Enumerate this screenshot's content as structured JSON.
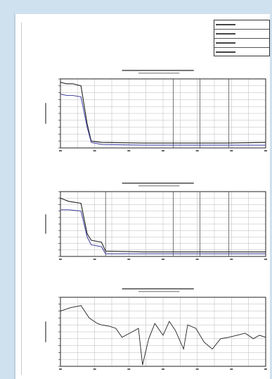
{
  "window": {
    "title": ""
  },
  "title_block": {
    "rows": [
      "",
      "",
      "",
      ""
    ]
  },
  "colors": {
    "background": "#cfe0ee",
    "page": "#ffffff",
    "grid": "#b8b8b8",
    "line_black": "#222222",
    "line_blue": "#4a4aa8"
  },
  "chart_data": [
    {
      "type": "line",
      "title": "",
      "xlabel": "",
      "ylabel": "",
      "grid": true,
      "series": [
        {
          "x": [
            0,
            0.03,
            0.06,
            0.1,
            0.13,
            0.15,
            0.2,
            0.4,
            0.6,
            0.8,
            1.0
          ],
          "values": [
            0.95,
            0.93,
            0.93,
            0.9,
            0.35,
            0.1,
            0.08,
            0.07,
            0.07,
            0.07,
            0.08
          ]
        },
        {
          "x": [
            0,
            0.03,
            0.06,
            0.1,
            0.13,
            0.15,
            0.2,
            0.4,
            0.6,
            0.8,
            1.0
          ],
          "values": [
            0.78,
            0.76,
            0.76,
            0.74,
            0.3,
            0.08,
            0.05,
            0.04,
            0.04,
            0.04,
            0.04
          ]
        }
      ],
      "vlines": [
        0.55,
        0.68,
        0.82,
        1.0
      ]
    },
    {
      "type": "line",
      "title": "",
      "xlabel": "",
      "ylabel": "",
      "grid": true,
      "series": [
        {
          "x": [
            0,
            0.04,
            0.1,
            0.13,
            0.15,
            0.2,
            0.22,
            0.4,
            0.6,
            0.8,
            1.0
          ],
          "values": [
            0.9,
            0.85,
            0.82,
            0.35,
            0.25,
            0.22,
            0.08,
            0.07,
            0.07,
            0.07,
            0.07
          ]
        },
        {
          "x": [
            0,
            0.04,
            0.1,
            0.13,
            0.15,
            0.2,
            0.22,
            0.4,
            0.6,
            0.8,
            1.0
          ],
          "values": [
            0.72,
            0.72,
            0.7,
            0.3,
            0.18,
            0.15,
            0.04,
            0.04,
            0.04,
            0.04,
            0.04
          ]
        }
      ],
      "vlines": [
        0.22,
        0.55,
        0.68,
        0.82,
        1.0
      ]
    },
    {
      "type": "line",
      "title": "",
      "xlabel": "",
      "ylabel": "",
      "grid": true,
      "series": [
        {
          "x": [
            0,
            0.05,
            0.1,
            0.14,
            0.18,
            0.2,
            0.24,
            0.27,
            0.3,
            0.35,
            0.38,
            0.4,
            0.43,
            0.46,
            0.5,
            0.53,
            0.56,
            0.6,
            0.62,
            0.66,
            0.7,
            0.74,
            0.78,
            0.82,
            0.86,
            0.9,
            0.94,
            0.97,
            1.0
          ],
          "values": [
            0.8,
            0.85,
            0.88,
            0.7,
            0.62,
            0.6,
            0.58,
            0.55,
            0.42,
            0.5,
            0.55,
            0.02,
            0.4,
            0.62,
            0.45,
            0.65,
            0.52,
            0.25,
            0.6,
            0.55,
            0.35,
            0.25,
            0.4,
            0.42,
            0.45,
            0.48,
            0.4,
            0.45,
            0.42
          ]
        }
      ],
      "vlines": []
    }
  ]
}
